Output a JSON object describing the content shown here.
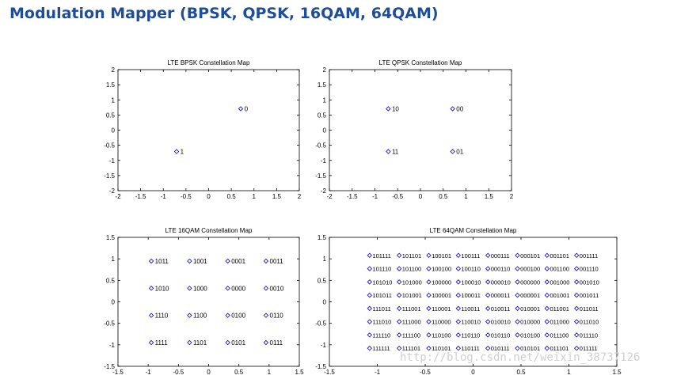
{
  "slide": {
    "title": "Modulation Mapper (BPSK, QPSK, 16QAM, 64QAM)",
    "watermark": "http://blog.csdn.net/weixin_38737126"
  },
  "colors": {
    "marker": "#1a1acc",
    "axis": "#000000",
    "text": "#000000",
    "title": "#1f4e96"
  },
  "chart_data": [
    {
      "type": "scatter",
      "title": "LTE BPSK Constellation Map",
      "xlim": [
        -2,
        2
      ],
      "ylim": [
        -2,
        2
      ],
      "xticks": [
        "-2",
        "-1.5",
        "-1",
        "-0.5",
        "0",
        "0.5",
        "1",
        "1.5",
        "2"
      ],
      "yticks": [
        "-2",
        "-1.5",
        "-1",
        "-0.5",
        "0",
        "0.5",
        "1",
        "1.5",
        "2"
      ],
      "marker": "diamond",
      "points": [
        {
          "x": 0.707,
          "y": 0.707,
          "label": "0"
        },
        {
          "x": -0.707,
          "y": -0.707,
          "label": "1"
        }
      ]
    },
    {
      "type": "scatter",
      "title": "LTE QPSK Constellation Map",
      "xlim": [
        -2,
        2
      ],
      "ylim": [
        -2,
        2
      ],
      "xticks": [
        "-2",
        "-1.5",
        "-1",
        "-0.5",
        "0",
        "0.5",
        "1",
        "1.5",
        "2"
      ],
      "yticks": [
        "-2",
        "-1.5",
        "-1",
        "-0.5",
        "0",
        "0.5",
        "1",
        "1.5",
        "2"
      ],
      "marker": "diamond",
      "points": [
        {
          "x": -0.707,
          "y": 0.707,
          "label": "10"
        },
        {
          "x": 0.707,
          "y": 0.707,
          "label": "00"
        },
        {
          "x": -0.707,
          "y": -0.707,
          "label": "11"
        },
        {
          "x": 0.707,
          "y": -0.707,
          "label": "01"
        }
      ]
    },
    {
      "type": "scatter",
      "title": "LTE 16QAM Constellation Map",
      "xlim": [
        -1.5,
        1.5
      ],
      "ylim": [
        -1.5,
        1.5
      ],
      "xticks": [
        "-1.5",
        "-1",
        "-0.5",
        "0",
        "0.5",
        "1",
        "1.5"
      ],
      "yticks": [
        "-1.5",
        "-1",
        "-0.5",
        "0",
        "0.5",
        "1",
        "1.5"
      ],
      "marker": "diamond",
      "points": [
        {
          "x": -0.9487,
          "y": 0.9487,
          "label": "1011"
        },
        {
          "x": -0.3162,
          "y": 0.9487,
          "label": "1001"
        },
        {
          "x": 0.3162,
          "y": 0.9487,
          "label": "0001"
        },
        {
          "x": 0.9487,
          "y": 0.9487,
          "label": "0011"
        },
        {
          "x": -0.9487,
          "y": 0.3162,
          "label": "1010"
        },
        {
          "x": -0.3162,
          "y": 0.3162,
          "label": "1000"
        },
        {
          "x": 0.3162,
          "y": 0.3162,
          "label": "0000"
        },
        {
          "x": 0.9487,
          "y": 0.3162,
          "label": "0010"
        },
        {
          "x": -0.9487,
          "y": -0.3162,
          "label": "1110"
        },
        {
          "x": -0.3162,
          "y": -0.3162,
          "label": "1100"
        },
        {
          "x": 0.3162,
          "y": -0.3162,
          "label": "0100"
        },
        {
          "x": 0.9487,
          "y": -0.3162,
          "label": "0110"
        },
        {
          "x": -0.9487,
          "y": -0.9487,
          "label": "1111"
        },
        {
          "x": -0.3162,
          "y": -0.9487,
          "label": "1101"
        },
        {
          "x": 0.3162,
          "y": -0.9487,
          "label": "0101"
        },
        {
          "x": 0.9487,
          "y": -0.9487,
          "label": "0111"
        }
      ]
    },
    {
      "type": "scatter",
      "title": "LTE 64QAM Constellation Map",
      "xlim": [
        -1.5,
        1.5
      ],
      "ylim": [
        -1.5,
        1.5
      ],
      "xticks": [
        "-1.5",
        "-1",
        "-0.5",
        "0",
        "0.5",
        "1",
        "1.5"
      ],
      "yticks": [
        "-1.5",
        "-1",
        "-0.5",
        "0",
        "0.5",
        "1",
        "1.5"
      ],
      "marker": "diamond",
      "points": [
        {
          "x": -1.0801,
          "y": 1.0801,
          "label": "101111"
        },
        {
          "x": -0.7715,
          "y": 1.0801,
          "label": "101101"
        },
        {
          "x": -0.4629,
          "y": 1.0801,
          "label": "100101"
        },
        {
          "x": -0.1543,
          "y": 1.0801,
          "label": "100111"
        },
        {
          "x": 0.1543,
          "y": 1.0801,
          "label": "000111"
        },
        {
          "x": 0.4629,
          "y": 1.0801,
          "label": "000101"
        },
        {
          "x": 0.7715,
          "y": 1.0801,
          "label": "001101"
        },
        {
          "x": 1.0801,
          "y": 1.0801,
          "label": "001111"
        },
        {
          "x": -1.0801,
          "y": 0.7715,
          "label": "101110"
        },
        {
          "x": -0.7715,
          "y": 0.7715,
          "label": "101100"
        },
        {
          "x": -0.4629,
          "y": 0.7715,
          "label": "100100"
        },
        {
          "x": -0.1543,
          "y": 0.7715,
          "label": "100110"
        },
        {
          "x": 0.1543,
          "y": 0.7715,
          "label": "000110"
        },
        {
          "x": 0.4629,
          "y": 0.7715,
          "label": "000100"
        },
        {
          "x": 0.7715,
          "y": 0.7715,
          "label": "001100"
        },
        {
          "x": 1.0801,
          "y": 0.7715,
          "label": "001110"
        },
        {
          "x": -1.0801,
          "y": 0.4629,
          "label": "101010"
        },
        {
          "x": -0.7715,
          "y": 0.4629,
          "label": "101000"
        },
        {
          "x": -0.4629,
          "y": 0.4629,
          "label": "100000"
        },
        {
          "x": -0.1543,
          "y": 0.4629,
          "label": "100010"
        },
        {
          "x": 0.1543,
          "y": 0.4629,
          "label": "000010"
        },
        {
          "x": 0.4629,
          "y": 0.4629,
          "label": "000000"
        },
        {
          "x": 0.7715,
          "y": 0.4629,
          "label": "001000"
        },
        {
          "x": 1.0801,
          "y": 0.4629,
          "label": "001010"
        },
        {
          "x": -1.0801,
          "y": 0.1543,
          "label": "101011"
        },
        {
          "x": -0.7715,
          "y": 0.1543,
          "label": "101001"
        },
        {
          "x": -0.4629,
          "y": 0.1543,
          "label": "100001"
        },
        {
          "x": -0.1543,
          "y": 0.1543,
          "label": "100011"
        },
        {
          "x": 0.1543,
          "y": 0.1543,
          "label": "000011"
        },
        {
          "x": 0.4629,
          "y": 0.1543,
          "label": "000001"
        },
        {
          "x": 0.7715,
          "y": 0.1543,
          "label": "001001"
        },
        {
          "x": 1.0801,
          "y": 0.1543,
          "label": "001011"
        },
        {
          "x": -1.0801,
          "y": -0.1543,
          "label": "111011"
        },
        {
          "x": -0.7715,
          "y": -0.1543,
          "label": "111001"
        },
        {
          "x": -0.4629,
          "y": -0.1543,
          "label": "110001"
        },
        {
          "x": -0.1543,
          "y": -0.1543,
          "label": "110011"
        },
        {
          "x": 0.1543,
          "y": -0.1543,
          "label": "010011"
        },
        {
          "x": 0.4629,
          "y": -0.1543,
          "label": "010001"
        },
        {
          "x": 0.7715,
          "y": -0.1543,
          "label": "011001"
        },
        {
          "x": 1.0801,
          "y": -0.1543,
          "label": "011011"
        },
        {
          "x": -1.0801,
          "y": -0.4629,
          "label": "111010"
        },
        {
          "x": -0.7715,
          "y": -0.4629,
          "label": "111000"
        },
        {
          "x": -0.4629,
          "y": -0.4629,
          "label": "110000"
        },
        {
          "x": -0.1543,
          "y": -0.4629,
          "label": "110010"
        },
        {
          "x": 0.1543,
          "y": -0.4629,
          "label": "010010"
        },
        {
          "x": 0.4629,
          "y": -0.4629,
          "label": "010000"
        },
        {
          "x": 0.7715,
          "y": -0.4629,
          "label": "011000"
        },
        {
          "x": 1.0801,
          "y": -0.4629,
          "label": "011010"
        },
        {
          "x": -1.0801,
          "y": -0.7715,
          "label": "111110"
        },
        {
          "x": -0.7715,
          "y": -0.7715,
          "label": "111100"
        },
        {
          "x": -0.4629,
          "y": -0.7715,
          "label": "110100"
        },
        {
          "x": -0.1543,
          "y": -0.7715,
          "label": "110110"
        },
        {
          "x": 0.1543,
          "y": -0.7715,
          "label": "010110"
        },
        {
          "x": 0.4629,
          "y": -0.7715,
          "label": "010100"
        },
        {
          "x": 0.7715,
          "y": -0.7715,
          "label": "011100"
        },
        {
          "x": 1.0801,
          "y": -0.7715,
          "label": "011110"
        },
        {
          "x": -1.0801,
          "y": -1.0801,
          "label": "111111"
        },
        {
          "x": -0.7715,
          "y": -1.0801,
          "label": "111101"
        },
        {
          "x": -0.4629,
          "y": -1.0801,
          "label": "110101"
        },
        {
          "x": -0.1543,
          "y": -1.0801,
          "label": "110111"
        },
        {
          "x": 0.1543,
          "y": -1.0801,
          "label": "010111"
        },
        {
          "x": 0.4629,
          "y": -1.0801,
          "label": "010101"
        },
        {
          "x": 0.7715,
          "y": -1.0801,
          "label": "011101"
        },
        {
          "x": 1.0801,
          "y": -1.0801,
          "label": "011111"
        }
      ]
    }
  ]
}
